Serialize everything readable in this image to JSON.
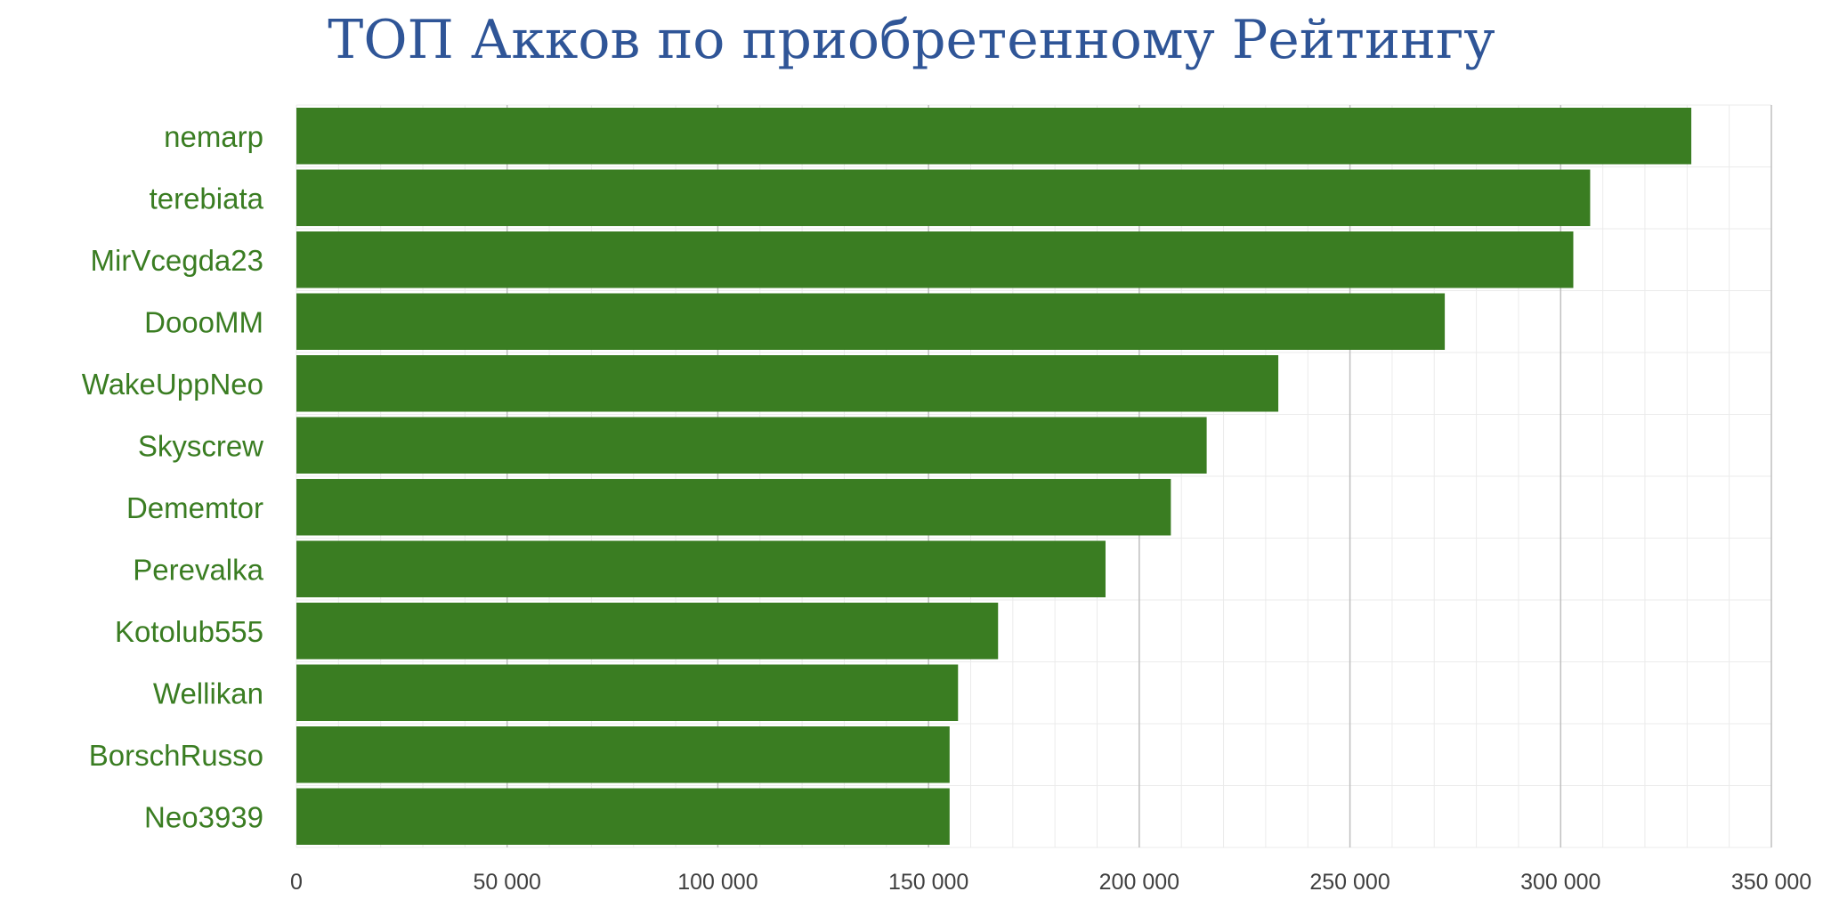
{
  "chart_data": {
    "type": "bar",
    "orientation": "horizontal",
    "title": "ТОП Акков по приобретенному Рейтингу",
    "xlabel": "",
    "ylabel": "",
    "categories": [
      "nemarp",
      "terebiata",
      "MirVcegda23",
      "DoooMM",
      "WakeUppNeo",
      "Skyscrew",
      "Dememtor",
      "Perevalka",
      "Kotolub555",
      "Wellikan",
      "BorschRusso",
      "Neo3939"
    ],
    "values": [
      331000,
      307000,
      303000,
      272500,
      233000,
      216000,
      207500,
      192000,
      166500,
      157000,
      155000,
      155000
    ],
    "xlim": [
      0,
      350000
    ],
    "xticks": [
      0,
      50000,
      100000,
      150000,
      200000,
      250000,
      300000,
      350000
    ],
    "xtick_labels": [
      "0",
      "50 000",
      "100 000",
      "150 000",
      "200 000",
      "250 000",
      "300 000",
      "350 000"
    ],
    "grid": true,
    "legend": "none",
    "colors": {
      "bar": "#3a7d22",
      "category_label": "#3a7d22",
      "title": "#2f5597",
      "tick_label": "#404040",
      "major_grid": "#bfbfbf",
      "minor_grid": "#ebebeb"
    }
  }
}
